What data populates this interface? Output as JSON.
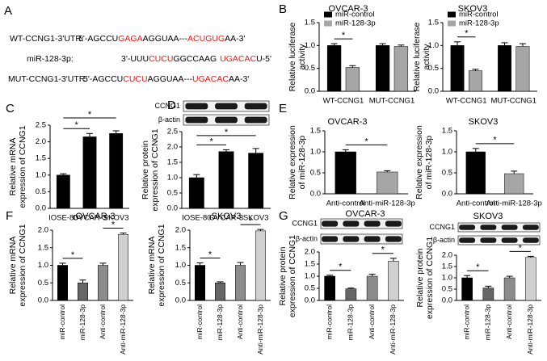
{
  "panel_labels": [
    "A",
    "B",
    "C",
    "D",
    "E",
    "F",
    "G"
  ],
  "sequences": [
    {
      "label": "WT-CCNG1-3'UTR:",
      "parts": [
        "5'-AGCCU",
        "GAGA",
        "AGGUAA---",
        "ACUGUG",
        "AA-3'"
      ]
    },
    {
      "label": "miR-128-3p:",
      "parts": [
        "3'-UUU",
        "CUCU",
        "GGCCAAG",
        "UGACAC",
        "U-5'"
      ]
    },
    {
      "label": "MUT-CCNG1-3'UTR:",
      "parts": [
        "5'-AGCCU",
        "CUCU",
        "AGGUAA---",
        "UGACAC",
        "AA-3'"
      ]
    }
  ],
  "chart_data": [
    {
      "type": "bar",
      "title": "OVCAR-3",
      "ylabel": [
        "Relative luciferase",
        "activity"
      ],
      "categories": [
        "WT-CCNG1",
        "MUT-CCNG1"
      ],
      "series": [
        {
          "name": "miR-control",
          "color": "#000000",
          "values": [
            1.0,
            1.0
          ],
          "errors": [
            0.04,
            0.04
          ]
        },
        {
          "name": "miR-128-3p",
          "color": "#a6a6a6",
          "values": [
            0.52,
            0.98
          ],
          "errors": [
            0.04,
            0.03
          ]
        }
      ],
      "ylim": [
        0,
        1.5
      ],
      "yticks": [
        {
          "value": 0,
          "label": "0.0"
        },
        {
          "value": 0.5,
          "label": "0.5"
        },
        {
          "value": 1,
          "label": "1.0"
        },
        {
          "value": 1.5,
          "label": "1.5"
        }
      ],
      "annotations": [
        "*"
      ]
    },
    {
      "type": "bar",
      "title": "SKOV3",
      "ylabel": [
        "Relative luciferase",
        "activity"
      ],
      "categories": [
        "WT-CCNG1",
        "MUT-CCNG1"
      ],
      "series": [
        {
          "name": "miR-control",
          "color": "#000000",
          "values": [
            1.0,
            1.0
          ],
          "errors": [
            0.08,
            0.06
          ]
        },
        {
          "name": "miR-128-3p",
          "color": "#a6a6a6",
          "values": [
            0.45,
            0.98
          ],
          "errors": [
            0.03,
            0.06
          ]
        }
      ],
      "ylim": [
        0,
        1.5
      ],
      "yticks": [
        {
          "value": 0,
          "label": "0.0"
        },
        {
          "value": 0.5,
          "label": "0.5"
        },
        {
          "value": 1,
          "label": "1.0"
        },
        {
          "value": 1.5,
          "label": "1.5"
        }
      ],
      "annotations": [
        "*"
      ]
    },
    {
      "type": "bar",
      "ylabel": [
        "Relative mRNA",
        "expression of CCNG1"
      ],
      "categories": [
        "IOSE-80",
        "OVCAR-3",
        "SKOV3"
      ],
      "values": [
        1.0,
        2.15,
        2.25
      ],
      "errors": [
        0.04,
        0.1,
        0.08
      ],
      "colors": [
        "#000000",
        "#000000",
        "#000000"
      ],
      "ylim": [
        0,
        2.5
      ],
      "yticks": [
        {
          "value": 0,
          "label": "0.0"
        },
        {
          "value": 0.5,
          "label": "0.5"
        },
        {
          "value": 1,
          "label": "1.0"
        },
        {
          "value": 1.5,
          "label": "1.5"
        },
        {
          "value": 2,
          "label": "2.0"
        },
        {
          "value": 2.5,
          "label": "2.5"
        }
      ],
      "annotations": [
        "*",
        "*"
      ]
    },
    {
      "type": "bar",
      "ylabel": [
        "Relative protein",
        "expression of CCNG1"
      ],
      "blot_labels": [
        "CCNG1",
        "β-actin"
      ],
      "categories": [
        "IOSE-80",
        "OVCAR-3",
        "SKOV3"
      ],
      "values": [
        1.0,
        1.85,
        1.8
      ],
      "errors": [
        0.1,
        0.06,
        0.15
      ],
      "colors": [
        "#000000",
        "#000000",
        "#000000"
      ],
      "ylim": [
        0,
        2.5
      ],
      "yticks": [
        {
          "value": 0,
          "label": "0.0"
        },
        {
          "value": 0.5,
          "label": "0.5"
        },
        {
          "value": 1,
          "label": "1.0"
        },
        {
          "value": 1.5,
          "label": "1.5"
        },
        {
          "value": 2,
          "label": "2.0"
        },
        {
          "value": 2.5,
          "label": "2.5"
        }
      ],
      "annotations": [
        "*",
        "*"
      ]
    },
    {
      "type": "bar",
      "title": "OVCAR-3",
      "ylabel": [
        "Relative expression",
        "of miR-128-3p"
      ],
      "categories": [
        "Anti-control",
        "Anti-miR-128-3p"
      ],
      "values": [
        1.0,
        0.52
      ],
      "errors": [
        0.05,
        0.03
      ],
      "colors": [
        "#000000",
        "#a6a6a6"
      ],
      "ylim": [
        0,
        1.5
      ],
      "yticks": [
        {
          "value": 0,
          "label": "0.0"
        },
        {
          "value": 0.5,
          "label": "0.5"
        },
        {
          "value": 1,
          "label": "1.0"
        },
        {
          "value": 1.5,
          "label": "1.5"
        }
      ],
      "annotations": [
        "*"
      ]
    },
    {
      "type": "bar",
      "title": "SKOV3",
      "ylabel": [
        "Relative expression",
        "of miR-128-3p"
      ],
      "categories": [
        "Anti-control",
        "Anti-miR-128-3p"
      ],
      "values": [
        1.0,
        0.48
      ],
      "errors": [
        0.08,
        0.06
      ],
      "colors": [
        "#000000",
        "#a6a6a6"
      ],
      "ylim": [
        0,
        1.5
      ],
      "yticks": [
        {
          "value": 0,
          "label": "0.0"
        },
        {
          "value": 0.5,
          "label": "0.5"
        },
        {
          "value": 1,
          "label": "1.0"
        },
        {
          "value": 1.5,
          "label": "1.5"
        }
      ],
      "annotations": [
        "*"
      ]
    },
    {
      "type": "bar",
      "title": "OVCAR-3",
      "ylabel": [
        "Relative mRNA",
        "expression of CCNG1"
      ],
      "categories": [
        "miR-control",
        "miR-128-3p",
        "Anti-control",
        "Anti-miR-128-3p"
      ],
      "values": [
        1.0,
        0.5,
        1.0,
        1.88
      ],
      "errors": [
        0.06,
        0.08,
        0.06,
        0.04
      ],
      "colors": [
        "#000000",
        "#666666",
        "#8c8c8c",
        "#d0d0d0"
      ],
      "ylim": [
        0,
        2
      ],
      "yticks": [
        {
          "value": 0,
          "label": "0.0"
        },
        {
          "value": 0.5,
          "label": "0.5"
        },
        {
          "value": 1,
          "label": "1.0"
        },
        {
          "value": 1.5,
          "label": "1.5"
        },
        {
          "value": 2,
          "label": "2.0"
        }
      ],
      "annotations": [
        "*",
        "*"
      ]
    },
    {
      "type": "bar",
      "title": "SKOV3",
      "ylabel": [
        "Relative mRNA",
        "expression of CCNG1"
      ],
      "categories": [
        "miR-control",
        "miR-128-3p",
        "Anti-control",
        "Anti-miR-128-3p"
      ],
      "values": [
        1.0,
        0.5,
        1.0,
        1.98
      ],
      "errors": [
        0.07,
        0.03,
        0.08,
        0.04
      ],
      "colors": [
        "#000000",
        "#666666",
        "#8c8c8c",
        "#d0d0d0"
      ],
      "ylim": [
        0,
        2
      ],
      "yticks": [
        {
          "value": 0,
          "label": "0.0"
        },
        {
          "value": 0.5,
          "label": "0.5"
        },
        {
          "value": 1,
          "label": "1.0"
        },
        {
          "value": 1.5,
          "label": "1.5"
        },
        {
          "value": 2,
          "label": "2.0"
        }
      ],
      "annotations": [
        "*",
        "*"
      ]
    },
    {
      "type": "bar",
      "title": "OVCAR-3",
      "ylabel": [
        "Relative protein",
        "expression of CCNG1"
      ],
      "blot_labels": [
        "CCNG1",
        "β-actin"
      ],
      "categories": [
        "miR-control",
        "miR-128-3p",
        "Anti-control",
        "Anti-miR-128-3p"
      ],
      "values": [
        1.0,
        0.48,
        1.0,
        1.62
      ],
      "errors": [
        0.04,
        0.03,
        0.08,
        0.12
      ],
      "colors": [
        "#000000",
        "#666666",
        "#8c8c8c",
        "#d0d0d0"
      ],
      "ylim": [
        0,
        2
      ],
      "yticks": [
        {
          "value": 0,
          "label": "0.0"
        },
        {
          "value": 0.5,
          "label": "0.5"
        },
        {
          "value": 1,
          "label": "1.0"
        },
        {
          "value": 1.5,
          "label": "1.5"
        },
        {
          "value": 2,
          "label": "2.0"
        }
      ],
      "annotations": [
        "*",
        "*"
      ]
    },
    {
      "type": "bar",
      "title": "SKOV3",
      "ylabel": [
        "Relative protein",
        "expression of CCNG1"
      ],
      "blot_labels": [
        "CCNG1",
        "β-actin"
      ],
      "categories": [
        "miR-control",
        "miR-128-3p",
        "Anti-control",
        "Anti-miR-128-3p"
      ],
      "values": [
        1.0,
        0.55,
        1.0,
        1.9
      ],
      "errors": [
        0.1,
        0.08,
        0.07,
        0.05
      ],
      "colors": [
        "#000000",
        "#666666",
        "#8c8c8c",
        "#d0d0d0"
      ],
      "ylim": [
        0,
        2
      ],
      "yticks": [
        {
          "value": 0,
          "label": "0.0"
        },
        {
          "value": 0.5,
          "label": "0.5"
        },
        {
          "value": 1,
          "label": "1.0"
        },
        {
          "value": 1.5,
          "label": "1.5"
        },
        {
          "value": 2,
          "label": "2.0"
        }
      ],
      "annotations": [
        "*",
        "*"
      ]
    }
  ]
}
